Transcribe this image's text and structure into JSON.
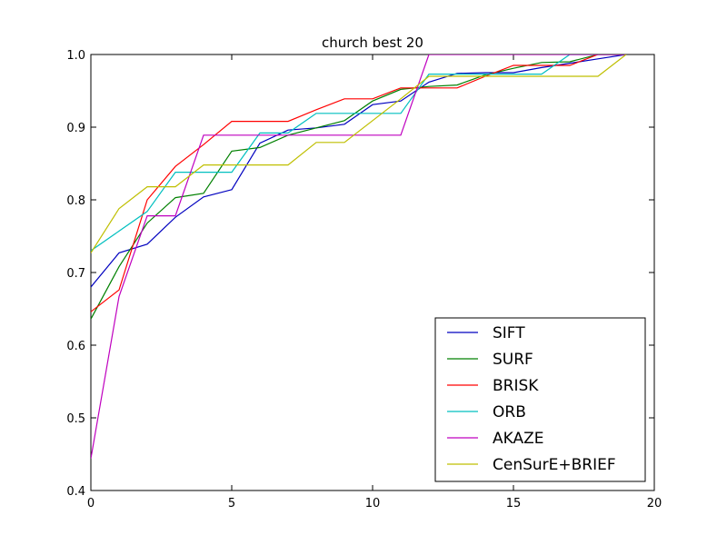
{
  "chart_data": {
    "type": "line",
    "title": "church best 20",
    "xlabel": "",
    "ylabel": "",
    "xlim": [
      0,
      20
    ],
    "ylim": [
      0.4,
      1.0
    ],
    "x_ticks": [
      "0",
      "5",
      "10",
      "15",
      "20"
    ],
    "y_ticks": [
      "0.4",
      "0.5",
      "0.6",
      "0.7",
      "0.8",
      "0.9",
      "1.0"
    ],
    "legend_position": "bottom-right",
    "grid": false,
    "series": [
      {
        "name": "SIFT",
        "color": "#0000bf",
        "x": [
          0,
          1,
          2,
          3,
          4,
          5,
          6,
          7,
          8,
          9,
          10,
          11,
          12,
          13,
          14,
          15,
          16,
          17,
          18,
          19
        ],
        "values": [
          0.68,
          0.727,
          0.739,
          0.776,
          0.804,
          0.814,
          0.878,
          0.896,
          0.899,
          0.904,
          0.931,
          0.936,
          0.962,
          0.974,
          0.975,
          0.975,
          0.982,
          0.988,
          0.994,
          1.0
        ]
      },
      {
        "name": "SURF",
        "color": "#008000",
        "x": [
          0,
          1,
          2,
          3,
          4,
          5,
          6,
          7,
          8,
          9,
          10,
          11,
          12,
          13,
          14,
          15,
          16,
          17,
          18,
          19
        ],
        "values": [
          0.636,
          0.708,
          0.768,
          0.803,
          0.809,
          0.867,
          0.872,
          0.889,
          0.899,
          0.909,
          0.936,
          0.952,
          0.956,
          0.958,
          0.972,
          0.981,
          0.989,
          0.99,
          1.0,
          1.0
        ]
      },
      {
        "name": "BRISK",
        "color": "#ff0000",
        "x": [
          0,
          1,
          2,
          3,
          4,
          5,
          6,
          7,
          8,
          9,
          10,
          11,
          12,
          13,
          14,
          15,
          16,
          17,
          18,
          19
        ],
        "values": [
          0.646,
          0.676,
          0.8,
          0.846,
          0.876,
          0.908,
          0.908,
          0.908,
          0.924,
          0.939,
          0.939,
          0.954,
          0.954,
          0.954,
          0.97,
          0.985,
          0.985,
          0.985,
          1.0,
          1.0
        ]
      },
      {
        "name": "ORB",
        "color": "#00bfbf",
        "x": [
          0,
          1,
          2,
          3,
          4,
          5,
          6,
          7,
          8,
          9,
          10,
          11,
          12,
          13,
          14,
          15,
          16,
          17,
          18,
          19
        ],
        "values": [
          0.73,
          0.757,
          0.784,
          0.838,
          0.838,
          0.838,
          0.892,
          0.892,
          0.919,
          0.919,
          0.919,
          0.919,
          0.973,
          0.973,
          0.973,
          0.973,
          0.973,
          1.0,
          1.0,
          1.0
        ]
      },
      {
        "name": "AKAZE",
        "color": "#bf00bf",
        "x": [
          0,
          1,
          2,
          3,
          4,
          5,
          6,
          7,
          8,
          9,
          10,
          11,
          12,
          13,
          14,
          15,
          16,
          17,
          18,
          19
        ],
        "values": [
          0.444,
          0.667,
          0.778,
          0.778,
          0.889,
          0.889,
          0.889,
          0.889,
          0.889,
          0.889,
          0.889,
          0.889,
          1.0,
          1.0,
          1.0,
          1.0,
          1.0,
          1.0,
          1.0,
          1.0
        ]
      },
      {
        "name": "CenSurE+BRIEF",
        "color": "#bfbf00",
        "x": [
          0,
          1,
          2,
          3,
          4,
          5,
          6,
          7,
          8,
          9,
          10,
          11,
          12,
          13,
          14,
          15,
          16,
          17,
          18,
          19
        ],
        "values": [
          0.727,
          0.788,
          0.818,
          0.818,
          0.848,
          0.848,
          0.848,
          0.848,
          0.879,
          0.879,
          0.909,
          0.939,
          0.97,
          0.97,
          0.97,
          0.97,
          0.97,
          0.97,
          0.97,
          1.0
        ]
      }
    ]
  }
}
